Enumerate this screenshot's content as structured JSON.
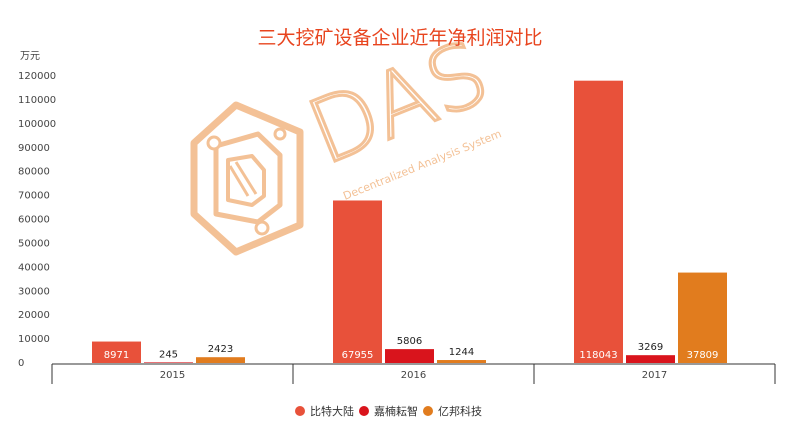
{
  "colors": {
    "title": "#e8441e",
    "bitmain": "#e8513a",
    "canaan": "#d9141c",
    "ebang": "#e17c1e",
    "watermark": "#f1b27c",
    "axis": "#333333",
    "tick_text": "#444444"
  },
  "watermark": {
    "logo_icon": "das-logo-icon",
    "big_text": "DAS",
    "small_text": "Decentralized Analysis System"
  },
  "chart_data": {
    "type": "bar",
    "title": "三大挖矿设备企业近年净利润对比",
    "ylabel": "万元",
    "xlabel": "",
    "categories": [
      "2015",
      "2016",
      "2017"
    ],
    "ylim": [
      0,
      120000
    ],
    "yticks": [
      0,
      10000,
      20000,
      30000,
      40000,
      50000,
      60000,
      70000,
      80000,
      90000,
      100000,
      110000,
      120000
    ],
    "grid": false,
    "legend_position": "bottom-center",
    "series": [
      {
        "name": "比特大陆",
        "color_key": "bitmain",
        "values": [
          8971,
          67955,
          118043
        ],
        "labels": [
          "8971",
          "67955",
          "118043"
        ]
      },
      {
        "name": "嘉楠耘智",
        "color_key": "canaan",
        "values": [
          245,
          5806,
          3269
        ],
        "labels": [
          "245",
          "5806",
          "3269"
        ]
      },
      {
        "name": "亿邦科技",
        "color_key": "ebang",
        "values": [
          2423,
          1244,
          37809
        ],
        "labels": [
          "2423",
          "1244",
          "37809"
        ]
      }
    ]
  }
}
